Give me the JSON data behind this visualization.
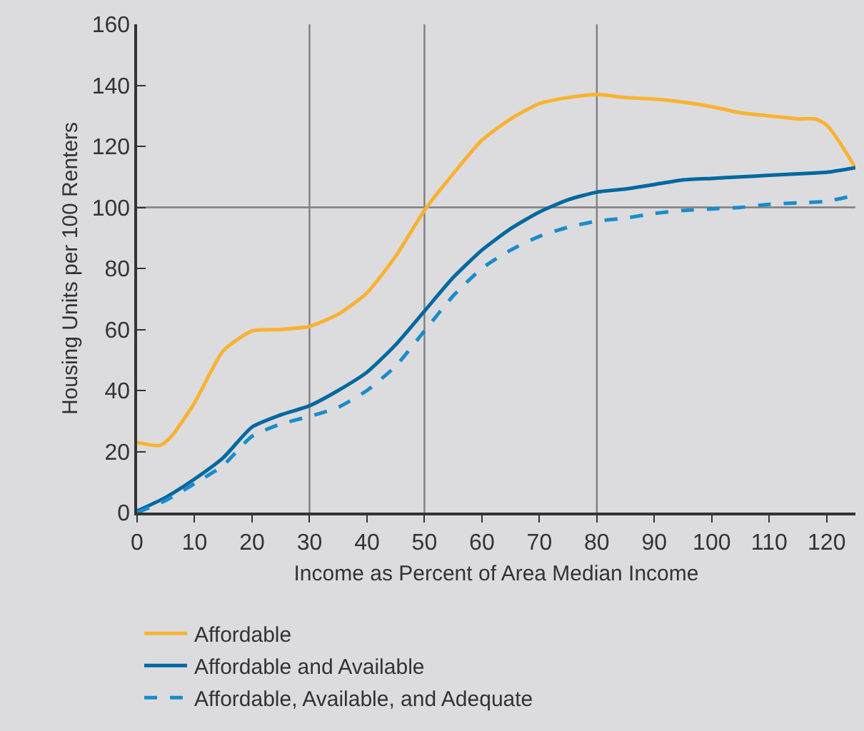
{
  "chart_data": {
    "type": "line",
    "xlabel": "Income as Percent of Area Median Income",
    "ylabel": "Housing Units per 100 Renters",
    "x": [
      0,
      5,
      10,
      15,
      20,
      25,
      30,
      35,
      40,
      45,
      50,
      55,
      60,
      65,
      70,
      75,
      80,
      85,
      90,
      95,
      100,
      105,
      110,
      115,
      120,
      125
    ],
    "series": [
      {
        "name": "Affordable",
        "color": "#f9b233",
        "line_style": "solid",
        "x": [
          0,
          4,
          6,
          10,
          15,
          20,
          25,
          30,
          35,
          40,
          45,
          50,
          55,
          60,
          65,
          70,
          75,
          80,
          85,
          90,
          95,
          100,
          105,
          110,
          115,
          118,
          120,
          122,
          125
        ],
        "values": [
          23,
          22,
          25,
          36,
          53,
          59.5,
          60,
          61,
          65,
          72,
          84,
          99,
          111,
          122,
          129,
          134,
          136,
          137,
          136,
          135.5,
          134.5,
          133,
          131,
          130,
          129,
          129,
          127,
          122,
          113
        ]
      },
      {
        "name": "Affordable and Available",
        "color": "#0068a0",
        "line_style": "solid",
        "values": [
          0.5,
          5,
          11,
          18,
          28,
          32,
          35,
          40,
          46,
          55,
          66,
          77,
          86,
          93,
          98.5,
          102.5,
          105,
          106,
          107.5,
          109,
          109.5,
          110,
          110.5,
          111,
          111.5,
          113
        ]
      },
      {
        "name": "Affordable, Available, and Adequate",
        "color": "#1a8ccb",
        "line_style": "dashed",
        "values": [
          0,
          4,
          9.5,
          15.5,
          25,
          29,
          31.5,
          34.5,
          40,
          48,
          59.5,
          71,
          80,
          86,
          90.5,
          93.5,
          95.5,
          96.5,
          98,
          99,
          99.5,
          100,
          101,
          101.5,
          102,
          104
        ]
      }
    ],
    "xlim": [
      0,
      125
    ],
    "xticks": [
      0,
      10,
      20,
      30,
      40,
      50,
      60,
      70,
      80,
      90,
      100,
      110,
      120
    ],
    "ylim": [
      0,
      160
    ],
    "yticks": [
      0,
      20,
      40,
      60,
      80,
      100,
      120,
      140,
      160
    ],
    "ref_lines": [
      {
        "axis": "x",
        "value": 30,
        "color": "#7f7f7f"
      },
      {
        "axis": "x",
        "value": 50,
        "color": "#7f7f7f"
      },
      {
        "axis": "x",
        "value": 80,
        "color": "#7f7f7f"
      },
      {
        "axis": "y",
        "value": 100,
        "color": "#7f7f7f"
      }
    ],
    "grid": false,
    "legend": "bottom left",
    "marker": "none"
  }
}
